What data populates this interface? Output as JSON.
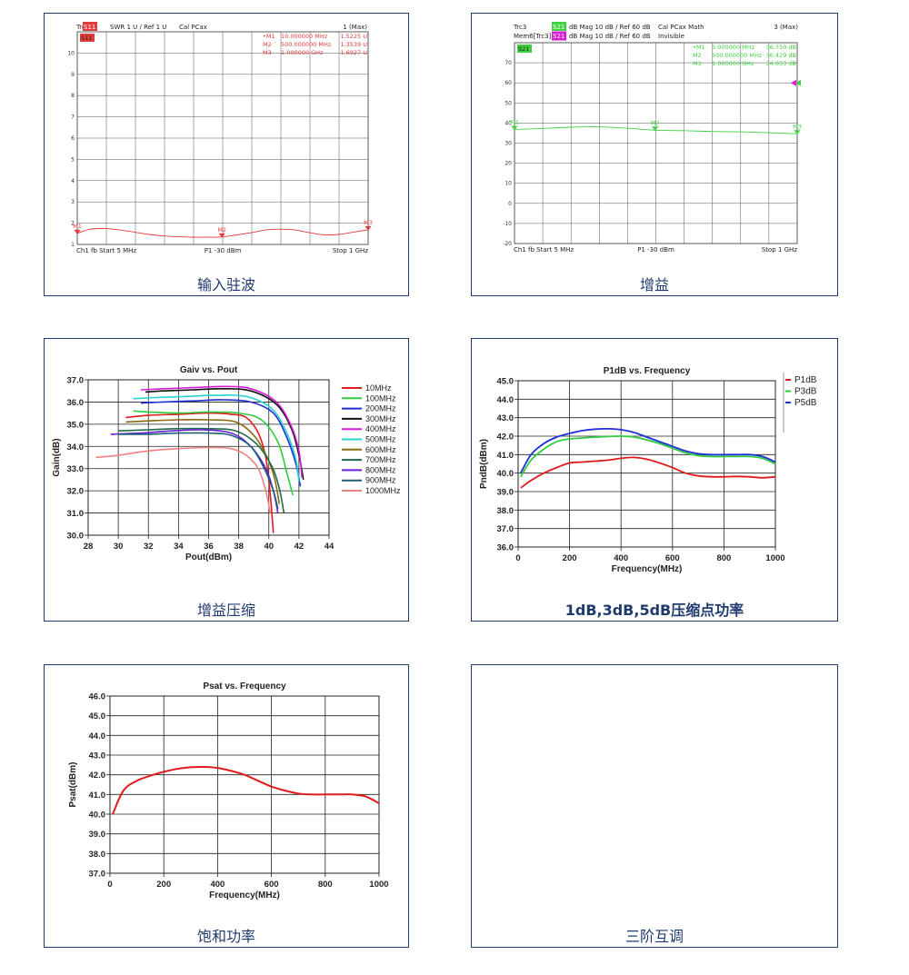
{
  "captions": {
    "swr": "输入驻波",
    "gain": "增益",
    "compression": "增益压缩",
    "pcomp": "1dB,3dB,5dB压缩点功率",
    "psat": "饱和功率",
    "imd": "三阶互调"
  },
  "vna_swr": {
    "hdr_trc": "Trc1",
    "hdr_param": "S11",
    "hdr_fmt": "SWR  1 U /  Ref 1 U",
    "hdr_cal": "Cal PCax",
    "hdr_max": "1 (Max)",
    "trace_tag": "S11",
    "markers": [
      {
        "label": "•M1",
        "freq": "10.000000  MHz",
        "val": "1.5225  U"
      },
      {
        "label": "M2",
        "freq": "500.000000  MHz",
        "val": "1.3539  U"
      },
      {
        "label": "M3",
        "freq": "1.000000  GHz",
        "val": "1.6927  U"
      }
    ],
    "footer_left": "Ch1   fb   Start  5 MHz",
    "footer_mid": "P1   -30 dBm",
    "footer_right": "Stop  1 GHz",
    "marker_names": [
      "M1",
      "M2",
      "M3"
    ],
    "color": "#e33b3b",
    "chart_data": {
      "type": "line",
      "x_unit": "MHz",
      "y_unit": "U",
      "xlim": [
        5,
        1000
      ],
      "ylim": [
        1,
        11
      ],
      "y_ticks": [
        "10",
        "9",
        "8",
        "7",
        "6",
        "5",
        "4",
        "3",
        "2",
        "1"
      ],
      "x": [
        5,
        50,
        100,
        150,
        200,
        250,
        300,
        350,
        400,
        450,
        500,
        550,
        600,
        650,
        700,
        750,
        800,
        850,
        900,
        950,
        1000
      ],
      "values": [
        1.52,
        1.72,
        1.75,
        1.68,
        1.58,
        1.47,
        1.4,
        1.36,
        1.34,
        1.34,
        1.35,
        1.45,
        1.55,
        1.68,
        1.72,
        1.68,
        1.55,
        1.45,
        1.47,
        1.58,
        1.69
      ]
    }
  },
  "vna_gain": {
    "hdr_trc": "Trc3",
    "hdr_param": "S21",
    "hdr_fmt": "dB Mag   10 dB /  Ref 60 dB",
    "hdr_cal": "Cal PCax Math",
    "hdr_max": "3 (Max)",
    "hdr2_trc": "Mem6[Trc3]",
    "hdr2_param": "S21",
    "hdr2_fmt": "dB Mag   10 dB /  Ref 60 dB",
    "hdr2_cal": "Invisible",
    "trace_tag": "S21",
    "markers": [
      {
        "label": "•M1",
        "freq": "5.000000  MHz",
        "val": "36.750  dB"
      },
      {
        "label": "M2",
        "freq": "500.000000  MHz",
        "val": "36.429  dB"
      },
      {
        "label": "M3",
        "freq": "1.000000  GHz",
        "val": "34.633  dB"
      }
    ],
    "footer_left": "Ch1   fb   Start  5 MHz",
    "footer_mid": "P1   -30 dBm",
    "footer_right": "Stop  1 GHz",
    "marker_names": [
      "M1",
      "M2",
      "M3"
    ],
    "color": "#3fd13f",
    "chart_data": {
      "type": "line",
      "x_unit": "MHz",
      "y_unit": "dB",
      "xlim": [
        5,
        1000
      ],
      "ylim": [
        -20,
        80
      ],
      "y_ticks": [
        "70",
        "60",
        "50",
        "40",
        "30",
        "20",
        "10",
        "0",
        "-10",
        "-20"
      ],
      "x": [
        5,
        100,
        200,
        300,
        400,
        500,
        600,
        700,
        800,
        900,
        1000
      ],
      "values": [
        36.75,
        37.3,
        37.9,
        38.1,
        37.4,
        36.43,
        36.2,
        35.8,
        35.6,
        35.2,
        34.63
      ]
    }
  },
  "compression": {
    "chart_data": {
      "type": "line",
      "title": "Gaiv vs. Pout",
      "xlabel": "Pout(dBm)",
      "ylabel": "Gain(dB)",
      "xlim": [
        28,
        44
      ],
      "ylim": [
        30,
        37
      ],
      "x_ticks": [
        "28",
        "30",
        "32",
        "34",
        "36",
        "38",
        "40",
        "42",
        "44"
      ],
      "y_ticks": [
        "37.0",
        "36.0",
        "35.0",
        "34.0",
        "33.0",
        "32.0",
        "31.0",
        "30.0"
      ],
      "legend_position": "right",
      "series": [
        {
          "name": "10MHz",
          "color": "#e01b1b",
          "x": [
            30.5,
            32,
            34,
            36,
            37.5,
            38.5,
            39.3,
            39.8,
            40.1,
            40.3
          ],
          "y": [
            35.3,
            35.4,
            35.45,
            35.5,
            35.45,
            35.3,
            34.6,
            33.5,
            31.8,
            30.1
          ]
        },
        {
          "name": "100MHz",
          "color": "#2ecc40",
          "x": [
            31,
            32,
            34,
            36,
            38,
            39.5,
            40.6,
            41.2,
            41.6
          ],
          "y": [
            35.6,
            35.55,
            35.5,
            35.55,
            35.5,
            35.2,
            34.2,
            32.8,
            31.8
          ]
        },
        {
          "name": "200MHz",
          "color": "#1f2fd6",
          "x": [
            31.5,
            33,
            35,
            37,
            38.8,
            40.3,
            41.2,
            41.8,
            42.1
          ],
          "y": [
            35.95,
            36.0,
            36.05,
            36.1,
            36.0,
            35.5,
            34.4,
            33.2,
            32.2
          ]
        },
        {
          "name": "300MHz",
          "color": "#111111",
          "x": [
            31.8,
            33,
            35,
            37,
            38.8,
            40.5,
            41.5,
            42,
            42.3
          ],
          "y": [
            36.45,
            36.5,
            36.55,
            36.6,
            36.5,
            35.9,
            34.8,
            33.6,
            32.5
          ]
        },
        {
          "name": "400MHz",
          "color": "#d81bd8",
          "x": [
            31.5,
            33,
            35,
            37,
            38.8,
            40.5,
            41.5,
            42,
            42.2
          ],
          "y": [
            36.55,
            36.6,
            36.65,
            36.7,
            36.6,
            36.0,
            34.9,
            33.8,
            32.6
          ]
        },
        {
          "name": "500MHz",
          "color": "#25d3d3",
          "x": [
            31,
            32.5,
            34.5,
            36.5,
            38.5,
            40.2,
            41.2,
            41.8,
            42
          ],
          "y": [
            36.15,
            36.2,
            36.25,
            36.3,
            36.25,
            35.7,
            34.6,
            33.4,
            32.4
          ]
        },
        {
          "name": "600MHz",
          "color": "#8a6a10",
          "x": [
            30.5,
            32,
            34,
            36,
            37.8,
            39,
            39.9,
            40.4,
            40.7
          ],
          "y": [
            35.1,
            35.15,
            35.2,
            35.2,
            35.1,
            34.5,
            33.5,
            32.5,
            31.4
          ]
        },
        {
          "name": "700MHz",
          "color": "#1e6b4a",
          "x": [
            30,
            32,
            34,
            36,
            37.8,
            39.2,
            40.2,
            40.7,
            41
          ],
          "y": [
            34.7,
            34.75,
            34.8,
            34.8,
            34.7,
            34.1,
            33.1,
            32.1,
            31.0
          ]
        },
        {
          "name": "800MHz",
          "color": "#6a1fd6",
          "x": [
            29.5,
            31.5,
            33.5,
            35.5,
            37.5,
            38.8,
            39.8,
            40.3,
            40.6
          ],
          "y": [
            34.55,
            34.6,
            34.7,
            34.75,
            34.6,
            34.0,
            33.0,
            32.0,
            31.0
          ]
        },
        {
          "name": "900MHz",
          "color": "#1b5e7a",
          "x": [
            30,
            32,
            34,
            36,
            37.5,
            38.8,
            39.7,
            40.3,
            40.6
          ],
          "y": [
            34.55,
            34.55,
            34.6,
            34.6,
            34.5,
            34.0,
            33.0,
            32.0,
            31.2
          ]
        },
        {
          "name": "1000MHz",
          "color": "#f08080",
          "x": [
            28.5,
            30,
            32,
            34,
            36,
            37.5,
            38.5,
            39.3,
            39.8,
            40.1
          ],
          "y": [
            33.5,
            33.6,
            33.8,
            33.9,
            33.95,
            33.9,
            33.6,
            33.0,
            32.0,
            31.0
          ]
        }
      ]
    }
  },
  "pcomp": {
    "chart_data": {
      "type": "line",
      "title": "P1dB vs. Frequency",
      "xlabel": "Frequency(MHz)",
      "ylabel": "PndB(dBm)",
      "xlim": [
        0,
        1000
      ],
      "ylim": [
        36,
        45
      ],
      "x_ticks": [
        "0",
        "200",
        "400",
        "600",
        "800",
        "1000"
      ],
      "y_ticks": [
        "45.0",
        "44.0",
        "43.0",
        "42.0",
        "41.0",
        "40.0",
        "39.0",
        "38.0",
        "37.0",
        "36.0"
      ],
      "legend_position": "top-right",
      "series": [
        {
          "name": "P1dB",
          "color": "#e01b1b",
          "x": [
            10,
            50,
            100,
            150,
            200,
            250,
            300,
            350,
            400,
            450,
            500,
            550,
            600,
            650,
            700,
            750,
            800,
            850,
            900,
            950,
            1000
          ],
          "y": [
            39.2,
            39.6,
            40.0,
            40.3,
            40.55,
            40.6,
            40.65,
            40.7,
            40.8,
            40.85,
            40.75,
            40.55,
            40.3,
            40.0,
            39.85,
            39.8,
            39.8,
            39.82,
            39.8,
            39.75,
            39.8
          ]
        },
        {
          "name": "P3dB",
          "color": "#2ecc40",
          "x": [
            10,
            50,
            100,
            150,
            200,
            250,
            300,
            350,
            400,
            450,
            500,
            550,
            600,
            650,
            700,
            750,
            800,
            850,
            900,
            950,
            1000
          ],
          "y": [
            39.8,
            40.7,
            41.3,
            41.7,
            41.85,
            41.9,
            41.95,
            41.98,
            42.0,
            41.95,
            41.8,
            41.6,
            41.35,
            41.1,
            40.95,
            40.9,
            40.9,
            40.9,
            40.9,
            40.8,
            40.5
          ]
        },
        {
          "name": "P5dB",
          "color": "#1f2fd6",
          "x": [
            10,
            50,
            100,
            150,
            200,
            250,
            300,
            350,
            400,
            450,
            500,
            550,
            600,
            650,
            700,
            750,
            800,
            850,
            900,
            950,
            1000
          ],
          "y": [
            40.0,
            41.0,
            41.6,
            41.95,
            42.15,
            42.3,
            42.38,
            42.4,
            42.35,
            42.2,
            41.95,
            41.7,
            41.45,
            41.2,
            41.05,
            41.0,
            41.0,
            41.0,
            41.0,
            40.9,
            40.6
          ]
        }
      ]
    }
  },
  "psat": {
    "chart_data": {
      "type": "line",
      "title": "Psat vs. Frequency",
      "xlabel": "Frequency(MHz)",
      "ylabel": "Psat(dBm)",
      "xlim": [
        0,
        1000
      ],
      "ylim": [
        37,
        46
      ],
      "x_ticks": [
        "0",
        "200",
        "400",
        "600",
        "800",
        "1000"
      ],
      "y_ticks": [
        "46.0",
        "45.0",
        "44.0",
        "43.0",
        "42.0",
        "41.0",
        "40.0",
        "39.0",
        "38.0",
        "37.0"
      ],
      "series": [
        {
          "name": "",
          "color": "#e01b1b",
          "x": [
            10,
            50,
            100,
            150,
            200,
            250,
            300,
            350,
            400,
            450,
            500,
            550,
            600,
            650,
            700,
            750,
            800,
            850,
            900,
            950,
            1000
          ],
          "y": [
            40.0,
            41.2,
            41.7,
            41.95,
            42.15,
            42.3,
            42.38,
            42.4,
            42.35,
            42.2,
            42.0,
            41.7,
            41.4,
            41.2,
            41.05,
            41.0,
            41.0,
            41.0,
            41.0,
            40.9,
            40.55
          ]
        }
      ]
    }
  }
}
